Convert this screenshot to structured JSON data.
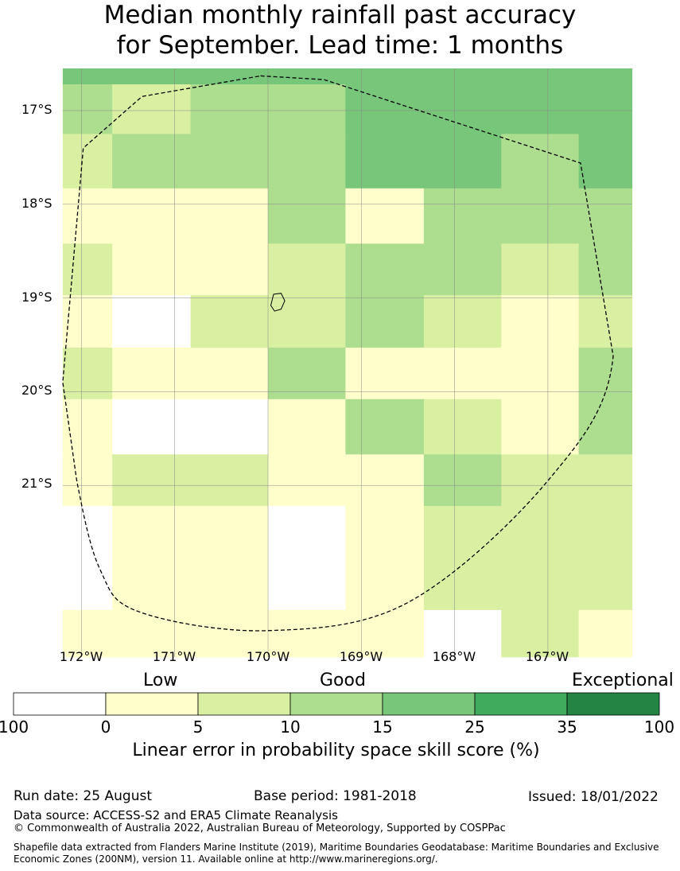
{
  "title_line1": "Median monthly rainfall past accuracy",
  "title_line2": "for September. Lead time: 1 months",
  "y_axis_labels": [
    "17°S",
    "18°S",
    "19°S",
    "20°S",
    "21°S"
  ],
  "x_axis_labels": [
    "172°W",
    "171°W",
    "170°W",
    "169°W",
    "168°W",
    "167°W"
  ],
  "legend": {
    "categories": [
      "Low",
      "Good",
      "Exceptional"
    ],
    "ticks": [
      "100",
      "0",
      "5",
      "10",
      "15",
      "25",
      "35",
      "100"
    ],
    "colors": [
      "#ffffff",
      "#ffffcc",
      "#d9f0a3",
      "#addd8e",
      "#78c679",
      "#41ab5d",
      "#238443"
    ],
    "title": "Linear error in probability space skill score (%)"
  },
  "footer": {
    "run_date": "Run date: 25 August",
    "base_period": "Base period: 1981-2018",
    "issued": "Issued: 18/01/2022",
    "data_source": "Data source: ACCESS-S2 and ERA5 Climate Reanalysis",
    "copyright": "© Commonwealth of Australia 2022, Australian Bureau of Meteorology, Supported by COSPPac",
    "shapefile": "Shapefile data extracted from Flanders Marine Institute (2019), Maritime Boundaries Geodatabase: Maritime Boundaries and Exclusive Economic Zones (200NM), version 11. Available online at http://www.marineregions.org/."
  },
  "map_data": {
    "grid_columns": [
      -172.2,
      -171.67,
      -170.83,
      -170.0,
      -169.17,
      -168.33,
      -167.5,
      -166.67,
      -166.1
    ],
    "grid_rows": [
      -16.55,
      -16.72,
      -17.25,
      -17.83,
      -18.42,
      -18.97,
      -19.53,
      -20.08,
      -20.67,
      -21.22,
      -22.33,
      -22.83
    ],
    "skill_classes_by_row": [
      [
        4,
        4,
        4,
        4,
        4,
        4,
        4,
        4
      ],
      [
        3,
        2,
        3,
        3,
        4,
        4,
        4,
        4
      ],
      [
        2,
        3,
        3,
        3,
        4,
        4,
        3,
        4
      ],
      [
        1,
        1,
        1,
        3,
        1,
        3,
        3,
        3
      ],
      [
        2,
        1,
        1,
        2,
        3,
        3,
        2,
        3
      ],
      [
        1,
        0,
        2,
        2,
        3,
        2,
        1,
        2
      ],
      [
        2,
        1,
        1,
        3,
        1,
        1,
        1,
        3
      ],
      [
        1,
        0,
        0,
        1,
        3,
        2,
        1,
        3
      ],
      [
        1,
        2,
        2,
        1,
        1,
        3,
        2,
        2
      ],
      [
        0,
        1,
        1,
        0,
        1,
        2,
        2,
        2
      ],
      [
        1,
        1,
        1,
        1,
        1,
        0,
        2,
        1
      ]
    ],
    "eez_boundary": [
      [
        -170.08,
        -16.63
      ],
      [
        -169.4,
        -16.67
      ],
      [
        -166.65,
        -17.56
      ],
      [
        -166.3,
        -19.62
      ],
      [
        -167.0,
        -20.95
      ],
      [
        -168.5,
        -22.25
      ],
      [
        -170.0,
        -22.55
      ],
      [
        -171.38,
        -22.35
      ],
      [
        -171.8,
        -21.9
      ],
      [
        -172.05,
        -20.95
      ],
      [
        -172.2,
        -19.9
      ],
      [
        -171.98,
        -17.4
      ],
      [
        -171.35,
        -16.85
      ],
      [
        -170.08,
        -16.63
      ]
    ],
    "island_outline": [
      [
        -169.94,
        -18.96
      ],
      [
        -169.86,
        -18.95
      ],
      [
        -169.82,
        -19.03
      ],
      [
        -169.86,
        -19.12
      ],
      [
        -169.93,
        -19.14
      ],
      [
        -169.97,
        -19.08
      ],
      [
        -169.94,
        -18.96
      ]
    ]
  }
}
